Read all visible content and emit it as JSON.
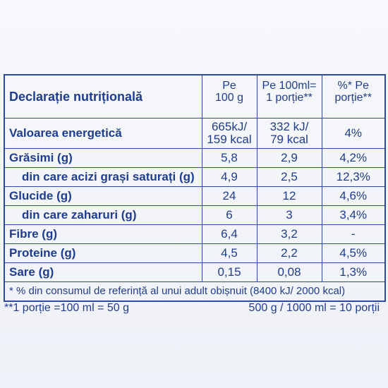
{
  "header": {
    "title": "Declarație nutrițională",
    "columns": [
      "Pe\n100 g",
      "Pe 100ml=\n1 porție**",
      "%* Pe\nporție**"
    ]
  },
  "table": {
    "rows": [
      [
        "Valoarea energetică",
        "665kJ/\n159 kcal",
        "332 kJ/\n79 kcal",
        "4%"
      ],
      [
        "Grăsimi (g)",
        "5,8",
        "2,9",
        "4,2%"
      ],
      [
        "din care acizi grași saturați (g)",
        "4,9",
        "2,5",
        "12,3%"
      ],
      [
        "Glucide (g)",
        "24",
        "12",
        "4,6%"
      ],
      [
        "din care zaharuri (g)",
        "6",
        "3",
        "3,4%"
      ],
      [
        "Fibre (g)",
        "6,4",
        "3,2",
        "-"
      ],
      [
        "Proteine (g)",
        "4,5",
        "2,2",
        "4,5%"
      ],
      [
        "Sare (g)",
        "0,15",
        "0,08",
        "1,3%"
      ]
    ],
    "footnote": "* % din consumul de referință al unui adult obișnuit (8400 kJ/ 2000 kcal)"
  },
  "bottom": {
    "left": "**1 porție =100 ml = 50 g",
    "right": "500 g / 1000 ml = 10 porții"
  }
}
